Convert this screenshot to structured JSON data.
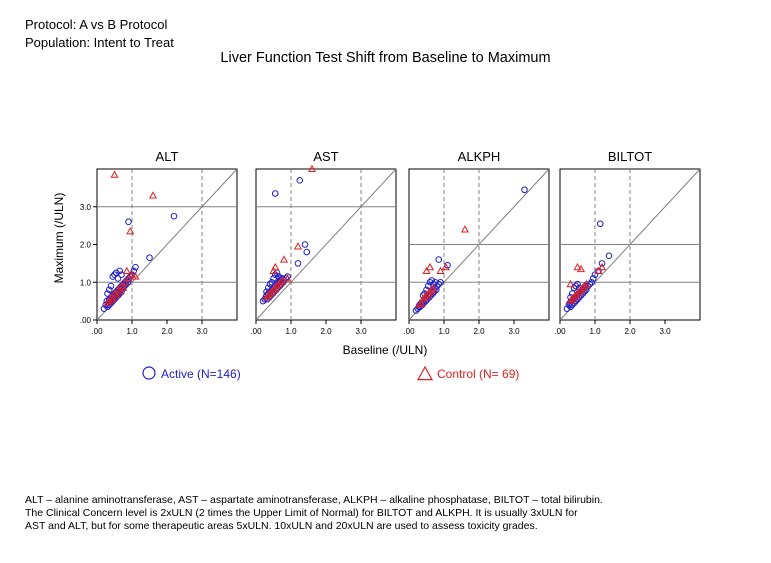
{
  "header": {
    "protocol": "Protocol: A vs B Protocol",
    "population": "Population: Intent to Treat",
    "title": "Liver Function Test Shift from Baseline to Maximum"
  },
  "footnote": {
    "lines": [
      "ALT – alanine aminotransferase, AST – aspartate aminotransferase, ALKPH – alkaline phosphatase, BILTOT – total bilirubin.",
      "The Clinical Concern level is 2xULN (2 times the Upper Limit of Normal) for BILTOT and ALKPH.  It is usually 3xULN for",
      "AST and ALT, but for some therapeutic areas 5xULN.  10xULN and 20xULN are used to assess toxicity grades."
    ]
  },
  "colors": {
    "active": "#2020c8",
    "control": "#e02020",
    "ref_line": "#808080"
  },
  "chart_data": {
    "type": "scatter",
    "xlabel": "Baseline (/ULN)",
    "ylabel": "Maximum (/ULN)",
    "x_ticks": [
      ".00",
      "1.0",
      "2.0",
      "3.0"
    ],
    "y_ticks": [
      ".00",
      "1.0",
      "2.0",
      "3.0"
    ],
    "xlim": [
      0,
      4
    ],
    "ylim": [
      0,
      4
    ],
    "legend": [
      {
        "label": "Active (N=146)",
        "marker": "circle",
        "color": "#2020c8"
      },
      {
        "label": "Control (N= 69)",
        "marker": "triangle",
        "color": "#e02020"
      }
    ],
    "panels": [
      {
        "name": "ALT",
        "ref_lines": [
          1,
          3
        ],
        "active": [
          [
            0.2,
            0.3
          ],
          [
            0.25,
            0.4
          ],
          [
            0.28,
            0.5
          ],
          [
            0.3,
            0.35
          ],
          [
            0.32,
            0.45
          ],
          [
            0.35,
            0.55
          ],
          [
            0.35,
            0.4
          ],
          [
            0.38,
            0.5
          ],
          [
            0.4,
            0.6
          ],
          [
            0.4,
            0.45
          ],
          [
            0.42,
            0.55
          ],
          [
            0.45,
            0.65
          ],
          [
            0.45,
            0.5
          ],
          [
            0.48,
            0.6
          ],
          [
            0.5,
            0.7
          ],
          [
            0.5,
            0.55
          ],
          [
            0.52,
            0.65
          ],
          [
            0.55,
            0.75
          ],
          [
            0.55,
            0.6
          ],
          [
            0.58,
            0.7
          ],
          [
            0.6,
            0.8
          ],
          [
            0.6,
            0.65
          ],
          [
            0.62,
            0.75
          ],
          [
            0.65,
            0.85
          ],
          [
            0.65,
            0.7
          ],
          [
            0.68,
            0.8
          ],
          [
            0.7,
            0.9
          ],
          [
            0.7,
            0.75
          ],
          [
            0.72,
            0.85
          ],
          [
            0.75,
            0.95
          ],
          [
            0.78,
            0.9
          ],
          [
            0.8,
            1.0
          ],
          [
            0.82,
            0.95
          ],
          [
            0.85,
            1.05
          ],
          [
            0.88,
            1.0
          ],
          [
            0.9,
            1.1
          ],
          [
            0.95,
            1.15
          ],
          [
            1.0,
            1.2
          ],
          [
            1.05,
            1.3
          ],
          [
            1.1,
            1.4
          ],
          [
            0.5,
            1.2
          ],
          [
            0.55,
            1.25
          ],
          [
            0.6,
            1.1
          ],
          [
            0.65,
            1.3
          ],
          [
            0.7,
            1.2
          ],
          [
            0.45,
            1.15
          ],
          [
            0.4,
            0.9
          ],
          [
            0.35,
            0.8
          ],
          [
            0.3,
            0.7
          ],
          [
            0.9,
            2.6
          ],
          [
            2.2,
            2.75
          ],
          [
            1.5,
            1.65
          ]
        ],
        "control": [
          [
            0.3,
            0.45
          ],
          [
            0.35,
            0.5
          ],
          [
            0.4,
            0.6
          ],
          [
            0.45,
            0.55
          ],
          [
            0.5,
            0.7
          ],
          [
            0.55,
            0.65
          ],
          [
            0.6,
            0.8
          ],
          [
            0.65,
            0.75
          ],
          [
            0.7,
            0.9
          ],
          [
            0.75,
            0.85
          ],
          [
            0.8,
            1.0
          ],
          [
            0.9,
            1.1
          ],
          [
            1.0,
            1.2
          ],
          [
            1.1,
            1.15
          ],
          [
            0.85,
            1.3
          ],
          [
            0.5,
            3.85
          ],
          [
            1.6,
            3.3
          ],
          [
            0.95,
            2.35
          ]
        ]
      },
      {
        "name": "AST",
        "ref_lines": [
          1,
          3
        ],
        "active": [
          [
            0.2,
            0.5
          ],
          [
            0.25,
            0.55
          ],
          [
            0.28,
            0.6
          ],
          [
            0.3,
            0.65
          ],
          [
            0.32,
            0.55
          ],
          [
            0.35,
            0.7
          ],
          [
            0.38,
            0.6
          ],
          [
            0.4,
            0.75
          ],
          [
            0.42,
            0.65
          ],
          [
            0.45,
            0.8
          ],
          [
            0.48,
            0.7
          ],
          [
            0.5,
            0.85
          ],
          [
            0.52,
            0.75
          ],
          [
            0.55,
            0.9
          ],
          [
            0.58,
            0.8
          ],
          [
            0.6,
            0.95
          ],
          [
            0.62,
            0.85
          ],
          [
            0.65,
            1.0
          ],
          [
            0.68,
            0.9
          ],
          [
            0.7,
            1.05
          ],
          [
            0.72,
            0.95
          ],
          [
            0.75,
            1.1
          ],
          [
            0.78,
            1.0
          ],
          [
            0.8,
            1.05
          ],
          [
            0.85,
            1.1
          ],
          [
            0.9,
            1.15
          ],
          [
            0.4,
            0.95
          ],
          [
            0.45,
            1.0
          ],
          [
            0.5,
            1.1
          ],
          [
            0.55,
            1.2
          ],
          [
            0.6,
            1.25
          ],
          [
            0.35,
            0.85
          ],
          [
            0.3,
            0.75
          ],
          [
            0.65,
            1.15
          ],
          [
            0.7,
            1.1
          ],
          [
            0.55,
            3.35
          ],
          [
            1.25,
            3.7
          ],
          [
            1.4,
            2.0
          ],
          [
            1.45,
            1.8
          ],
          [
            1.2,
            1.5
          ]
        ],
        "control": [
          [
            0.3,
            0.6
          ],
          [
            0.35,
            0.65
          ],
          [
            0.4,
            0.7
          ],
          [
            0.45,
            0.75
          ],
          [
            0.5,
            0.8
          ],
          [
            0.55,
            0.85
          ],
          [
            0.6,
            0.9
          ],
          [
            0.65,
            0.95
          ],
          [
            0.7,
            1.0
          ],
          [
            0.75,
            1.05
          ],
          [
            0.5,
            1.3
          ],
          [
            0.55,
            1.4
          ],
          [
            0.8,
            1.6
          ],
          [
            1.6,
            4.0
          ],
          [
            1.2,
            1.95
          ],
          [
            0.9,
            1.1
          ]
        ]
      },
      {
        "name": "ALKPH",
        "ref_lines": [
          1,
          2
        ],
        "active": [
          [
            0.2,
            0.25
          ],
          [
            0.25,
            0.3
          ],
          [
            0.28,
            0.35
          ],
          [
            0.3,
            0.4
          ],
          [
            0.32,
            0.35
          ],
          [
            0.35,
            0.45
          ],
          [
            0.38,
            0.4
          ],
          [
            0.4,
            0.5
          ],
          [
            0.42,
            0.45
          ],
          [
            0.45,
            0.55
          ],
          [
            0.48,
            0.5
          ],
          [
            0.5,
            0.6
          ],
          [
            0.52,
            0.55
          ],
          [
            0.55,
            0.65
          ],
          [
            0.58,
            0.6
          ],
          [
            0.6,
            0.7
          ],
          [
            0.62,
            0.65
          ],
          [
            0.65,
            0.75
          ],
          [
            0.68,
            0.7
          ],
          [
            0.7,
            0.8
          ],
          [
            0.72,
            0.75
          ],
          [
            0.75,
            0.85
          ],
          [
            0.78,
            0.8
          ],
          [
            0.8,
            0.9
          ],
          [
            0.85,
            0.95
          ],
          [
            0.9,
            1.0
          ],
          [
            0.5,
            0.8
          ],
          [
            0.55,
            0.9
          ],
          [
            0.6,
            1.0
          ],
          [
            0.65,
            1.05
          ],
          [
            0.45,
            0.7
          ],
          [
            0.4,
            0.65
          ],
          [
            0.7,
            0.95
          ],
          [
            0.75,
            1.0
          ],
          [
            0.85,
            1.6
          ],
          [
            1.1,
            1.45
          ],
          [
            3.3,
            3.45
          ]
        ],
        "control": [
          [
            0.3,
            0.4
          ],
          [
            0.35,
            0.45
          ],
          [
            0.4,
            0.55
          ],
          [
            0.45,
            0.6
          ],
          [
            0.5,
            0.65
          ],
          [
            0.55,
            0.7
          ],
          [
            0.6,
            0.75
          ],
          [
            0.65,
            0.8
          ],
          [
            0.7,
            0.85
          ],
          [
            0.5,
            1.3
          ],
          [
            0.6,
            1.4
          ],
          [
            0.9,
            1.3
          ],
          [
            1.05,
            1.4
          ],
          [
            1.6,
            2.4
          ]
        ]
      },
      {
        "name": "BILTOT",
        "ref_lines": [
          1,
          2
        ],
        "active": [
          [
            0.2,
            0.3
          ],
          [
            0.25,
            0.4
          ],
          [
            0.28,
            0.45
          ],
          [
            0.3,
            0.35
          ],
          [
            0.32,
            0.5
          ],
          [
            0.35,
            0.4
          ],
          [
            0.38,
            0.55
          ],
          [
            0.4,
            0.45
          ],
          [
            0.42,
            0.6
          ],
          [
            0.45,
            0.5
          ],
          [
            0.48,
            0.65
          ],
          [
            0.5,
            0.55
          ],
          [
            0.52,
            0.7
          ],
          [
            0.55,
            0.6
          ],
          [
            0.58,
            0.75
          ],
          [
            0.6,
            0.65
          ],
          [
            0.62,
            0.8
          ],
          [
            0.65,
            0.7
          ],
          [
            0.68,
            0.85
          ],
          [
            0.7,
            0.75
          ],
          [
            0.72,
            0.9
          ],
          [
            0.75,
            0.8
          ],
          [
            0.8,
            0.9
          ],
          [
            0.85,
            0.95
          ],
          [
            0.9,
            1.0
          ],
          [
            0.4,
            0.85
          ],
          [
            0.45,
            0.9
          ],
          [
            0.5,
            0.95
          ],
          [
            0.35,
            0.7
          ],
          [
            0.3,
            0.6
          ],
          [
            0.55,
            0.85
          ],
          [
            0.95,
            1.1
          ],
          [
            1.0,
            1.2
          ],
          [
            1.1,
            1.3
          ],
          [
            1.15,
            2.55
          ],
          [
            1.2,
            1.5
          ],
          [
            1.4,
            1.7
          ]
        ],
        "control": [
          [
            0.3,
            0.5
          ],
          [
            0.35,
            0.55
          ],
          [
            0.4,
            0.6
          ],
          [
            0.45,
            0.65
          ],
          [
            0.5,
            0.7
          ],
          [
            0.55,
            0.75
          ],
          [
            0.6,
            0.8
          ],
          [
            0.65,
            0.85
          ],
          [
            0.7,
            0.9
          ],
          [
            0.75,
            0.95
          ],
          [
            0.5,
            1.4
          ],
          [
            0.6,
            1.35
          ],
          [
            0.3,
            0.95
          ],
          [
            1.1,
            1.3
          ],
          [
            1.2,
            1.4
          ]
        ]
      }
    ]
  }
}
